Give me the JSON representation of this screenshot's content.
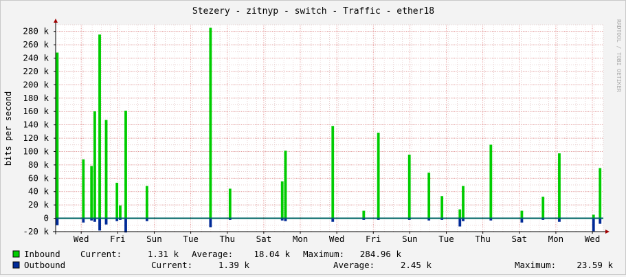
{
  "chart_data": {
    "type": "area",
    "title": "Stezery - zitnyp - switch - Traffic - ether18",
    "ylabel": "bits per second",
    "xlabel": "",
    "watermark": "RRDTOOL / TOBI OETIKER",
    "ylim": [
      -20000,
      290000
    ],
    "ytick_values": [
      -20000,
      0,
      20000,
      40000,
      60000,
      80000,
      100000,
      120000,
      140000,
      160000,
      180000,
      200000,
      220000,
      240000,
      260000,
      280000
    ],
    "ytick_labels": [
      "-20 k",
      "0",
      "20 k",
      "40 k",
      "60 k",
      "80 k",
      "100 k",
      "120 k",
      "140 k",
      "160 k",
      "180 k",
      "200 k",
      "220 k",
      "240 k",
      "260 k",
      "280 k"
    ],
    "xlim": [
      0,
      15
    ],
    "xtick_positions": [
      0.7,
      1.7,
      2.7,
      3.7,
      4.7,
      5.7,
      6.7,
      7.7,
      8.7,
      9.7,
      10.7,
      11.7,
      12.7,
      13.7,
      14.7
    ],
    "xtick_labels": [
      "Wed",
      "Fri",
      "Sun",
      "Tue",
      "Thu",
      "Sat",
      "Mon",
      "Wed",
      "Fri",
      "Sun",
      "Tue",
      "Thu",
      "Sat",
      "Mon",
      "Wed"
    ],
    "grid": true,
    "legend_position": "bottom",
    "series": [
      {
        "name": "Inbound",
        "color": "#00cc00",
        "sign": 1,
        "spikes": [
          [
            0.05,
            248000
          ],
          [
            0.85,
            88000
          ],
          [
            1.1,
            78000
          ],
          [
            1.2,
            160000
          ],
          [
            1.35,
            275000
          ],
          [
            1.55,
            147000
          ],
          [
            1.88,
            53000
          ],
          [
            1.98,
            19000
          ],
          [
            2.15,
            161000
          ],
          [
            2.8,
            48000
          ],
          [
            4.75,
            285000
          ],
          [
            5.35,
            44000
          ],
          [
            6.95,
            55000
          ],
          [
            7.05,
            101000
          ],
          [
            8.5,
            138000
          ],
          [
            9.45,
            11000
          ],
          [
            9.9,
            128000
          ],
          [
            10.85,
            95000
          ],
          [
            11.45,
            68000
          ],
          [
            11.85,
            33000
          ],
          [
            12.4,
            13000
          ],
          [
            12.5,
            48000
          ],
          [
            13.35,
            110000
          ],
          [
            14.3,
            11000
          ],
          [
            14.95,
            32000
          ],
          [
            15.45,
            97000
          ],
          [
            16.5,
            5000
          ],
          [
            16.7,
            75000
          ]
        ]
      },
      {
        "name": "Outbound",
        "color": "#002a97",
        "sign": -1,
        "spikes": [
          [
            0.05,
            10000
          ],
          [
            0.85,
            6000
          ],
          [
            1.1,
            3000
          ],
          [
            1.2,
            5000
          ],
          [
            1.35,
            18000
          ],
          [
            1.55,
            9000
          ],
          [
            1.88,
            4000
          ],
          [
            1.98,
            2000
          ],
          [
            2.15,
            21000
          ],
          [
            2.8,
            4000
          ],
          [
            4.75,
            13000
          ],
          [
            5.35,
            2000
          ],
          [
            6.95,
            3000
          ],
          [
            7.05,
            4000
          ],
          [
            8.5,
            5000
          ],
          [
            9.45,
            2000
          ],
          [
            9.9,
            2000
          ],
          [
            10.85,
            2000
          ],
          [
            11.45,
            3000
          ],
          [
            11.85,
            2000
          ],
          [
            12.4,
            12000
          ],
          [
            12.5,
            4000
          ],
          [
            13.35,
            3000
          ],
          [
            14.3,
            6000
          ],
          [
            14.95,
            2000
          ],
          [
            15.45,
            5000
          ],
          [
            16.5,
            19000
          ],
          [
            16.7,
            8000
          ]
        ]
      }
    ]
  },
  "legend": [
    {
      "name": "Inbound",
      "color": "#00cc00",
      "current_label": "Current:",
      "current": "1.31 k",
      "average_label": "Average:",
      "average": "18.04 k",
      "maximum_label": "Maximum:",
      "maximum": "284.96 k"
    },
    {
      "name": "Outbound",
      "color": "#002a97",
      "current_label": "Current:",
      "current": "1.39 k",
      "average_label": "Average:",
      "average": "2.45 k",
      "maximum_label": "Maximum:",
      "maximum": "23.59 k"
    }
  ]
}
